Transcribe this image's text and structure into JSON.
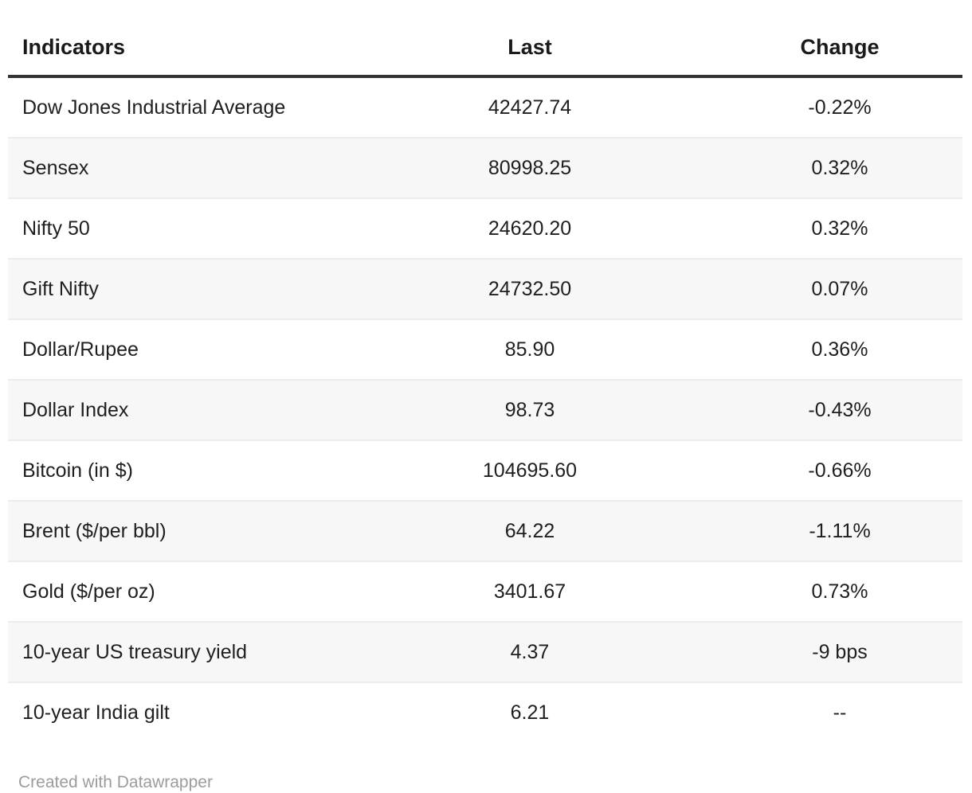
{
  "chart_data": {
    "type": "table",
    "columns": [
      {
        "label": "Indicators",
        "align": "left"
      },
      {
        "label": "Last",
        "align": "center"
      },
      {
        "label": "Change",
        "align": "center"
      }
    ],
    "rows": [
      {
        "indicator": "Dow Jones Industrial Average",
        "last": "42427.74",
        "change": "-0.22%"
      },
      {
        "indicator": "Sensex",
        "last": "80998.25",
        "change": "0.32%"
      },
      {
        "indicator": "Nifty 50",
        "last": "24620.20",
        "change": "0.32%"
      },
      {
        "indicator": "Gift Nifty",
        "last": "24732.50",
        "change": "0.07%"
      },
      {
        "indicator": "Dollar/Rupee",
        "last": "85.90",
        "change": "0.36%"
      },
      {
        "indicator": "Dollar Index",
        "last": "98.73",
        "change": "-0.43%"
      },
      {
        "indicator": "Bitcoin (in $)",
        "last": "104695.60",
        "change": "-0.66%"
      },
      {
        "indicator": "Brent ($/per bbl)",
        "last": "64.22",
        "change": "-1.11%"
      },
      {
        "indicator": "Gold ($/per oz)",
        "last": "3401.67",
        "change": "0.73%"
      },
      {
        "indicator": "10-year US treasury yield",
        "last": "4.37",
        "change": "-9 bps"
      },
      {
        "indicator": "10-year India gilt",
        "last": "6.21",
        "change": "--"
      }
    ]
  },
  "footer": {
    "attribution": "Created with Datawrapper"
  },
  "colors": {
    "text": "#1f1f1f",
    "header_text": "#1a1a1a",
    "header_rule": "#333333",
    "row_stripe": "#f7f7f7",
    "row_border": "#ececec",
    "footer_text": "#9c9c9c",
    "background": "#ffffff"
  }
}
